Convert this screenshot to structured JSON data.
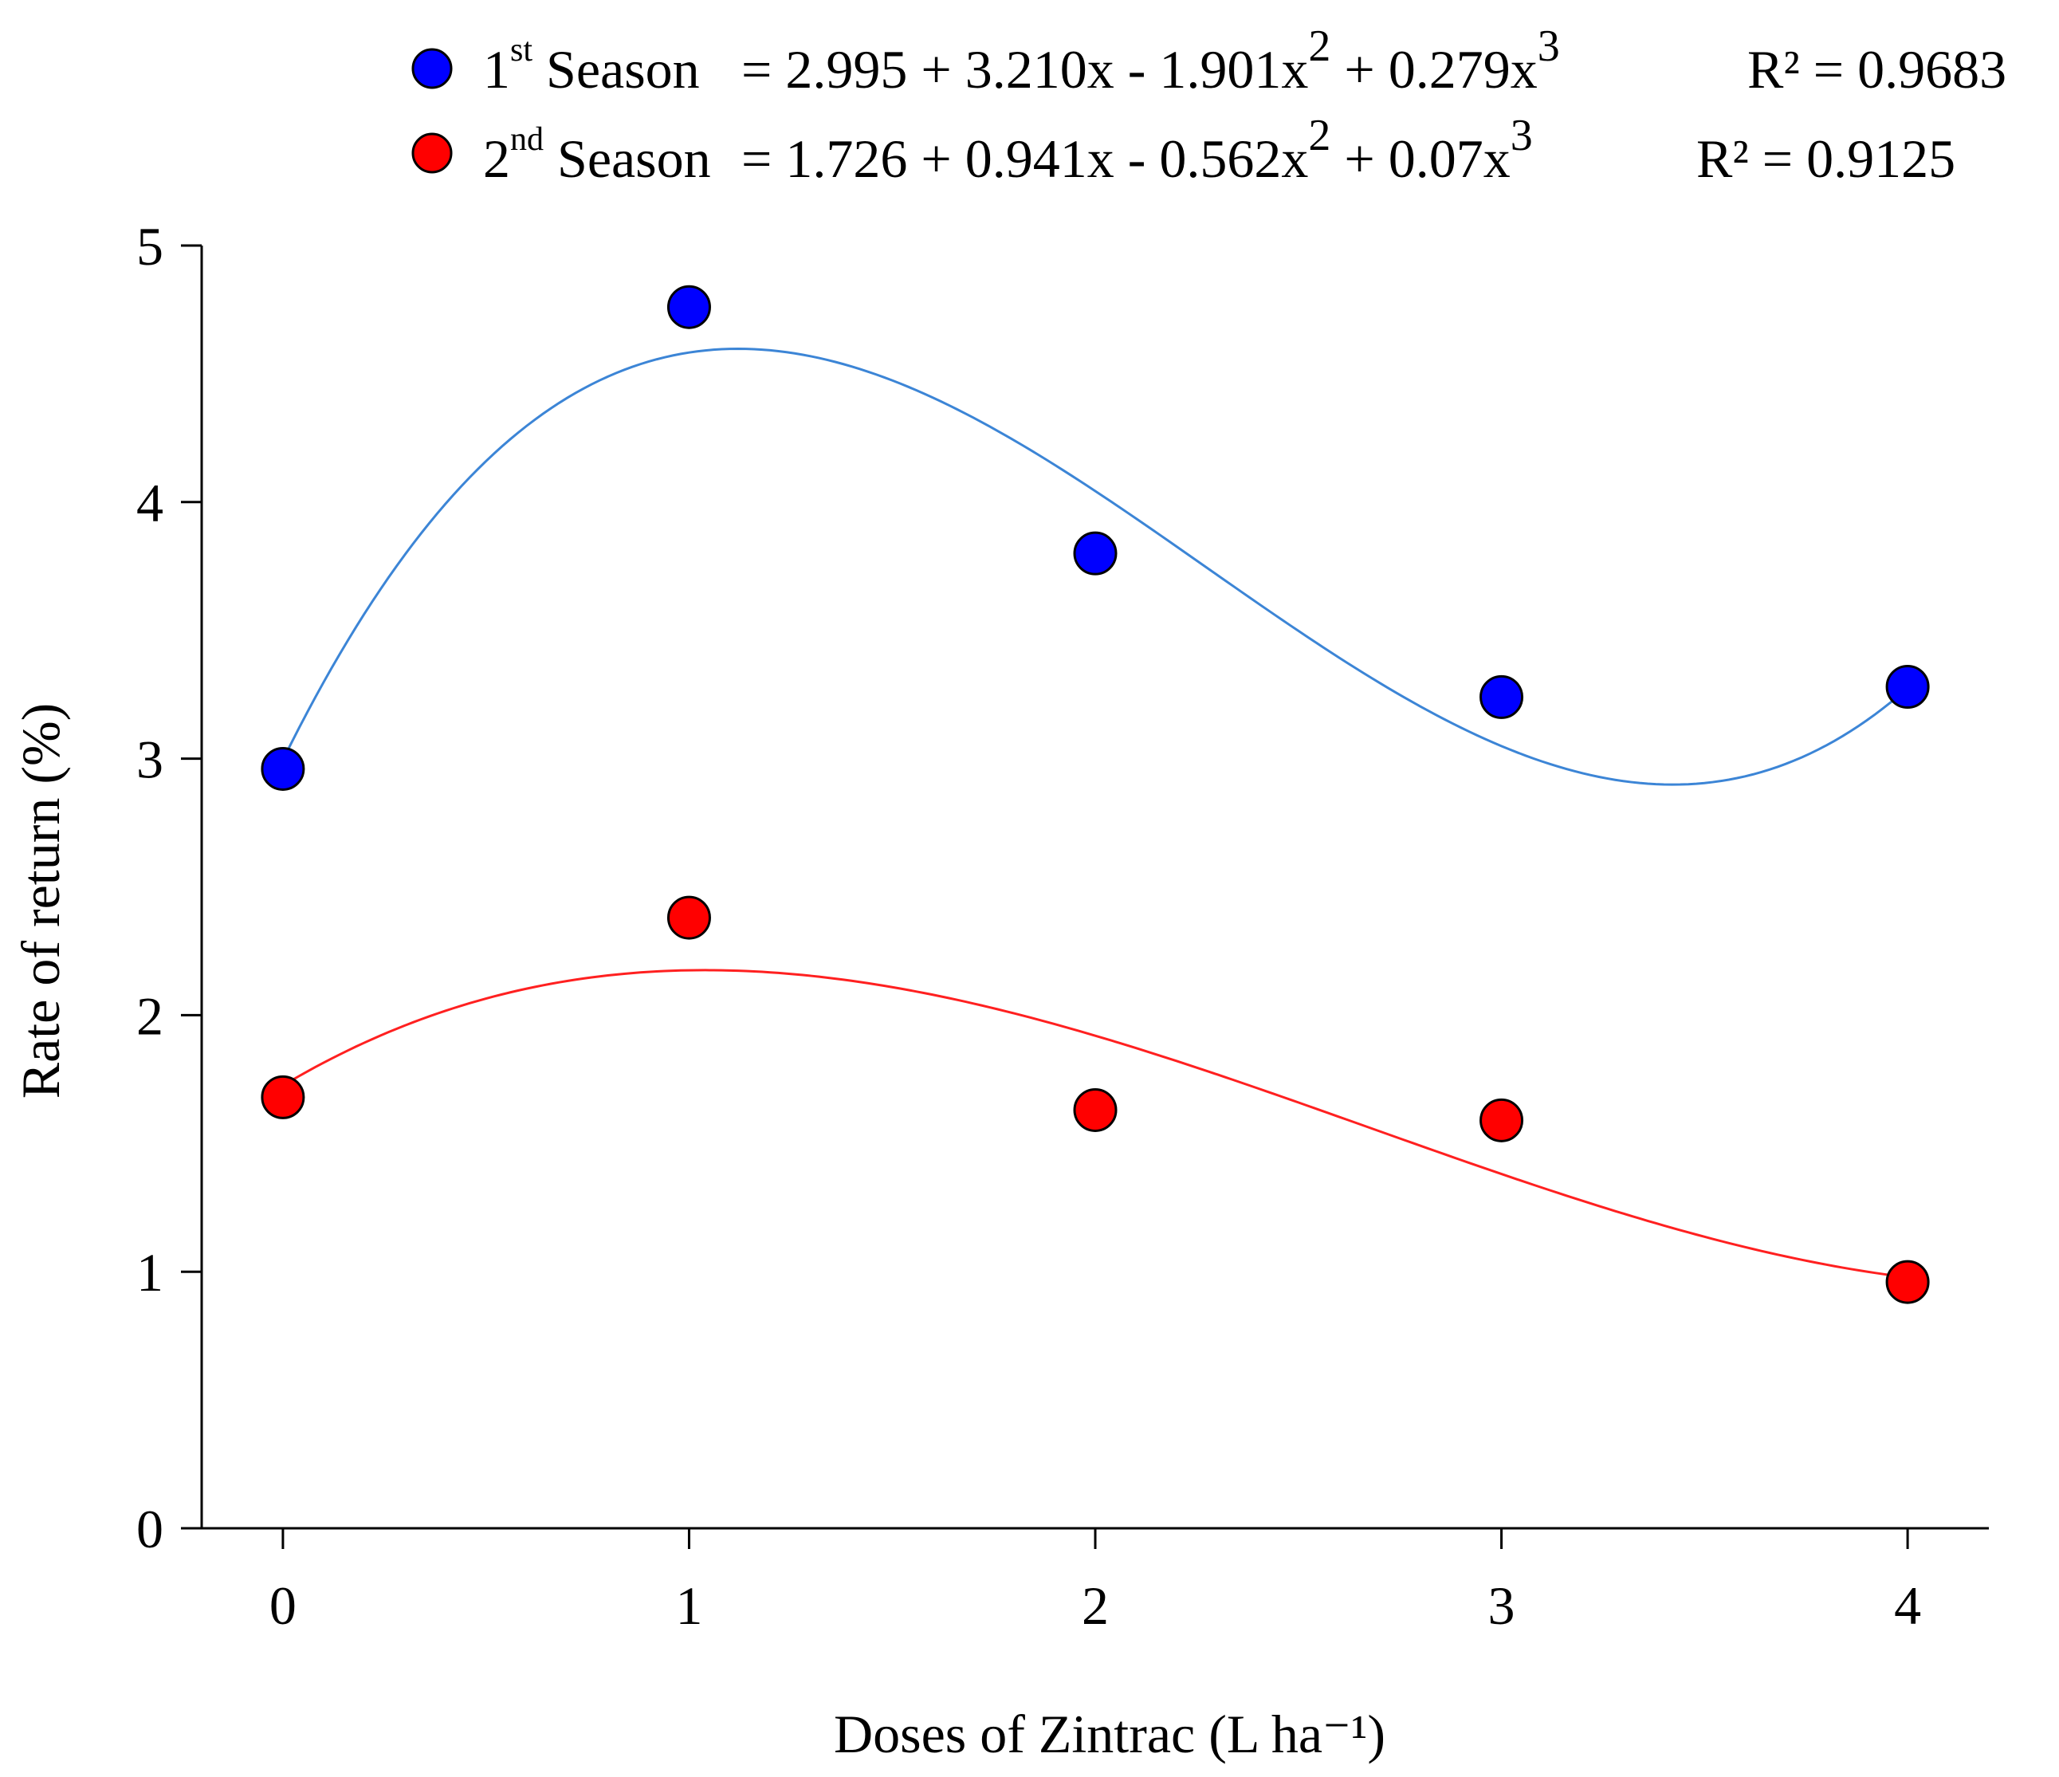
{
  "chart_data": {
    "type": "scatter",
    "title": "",
    "xlabel": "Doses of Zintrac (L ha⁻¹)",
    "ylabel": "Rate of return (%)",
    "xlim": [
      -0.2,
      4.2
    ],
    "ylim": [
      0,
      5
    ],
    "x_ticks": [
      "0",
      "1",
      "2",
      "3",
      "4"
    ],
    "y_ticks": [
      "0",
      "1",
      "2",
      "3",
      "4",
      "5"
    ],
    "grid": false,
    "legend_position": "top",
    "series": [
      {
        "name": "1st Season",
        "name_base": "1",
        "name_sup": "st",
        "name_rest": " Season",
        "color": "#0000ff",
        "curve_color": "#3c85d6",
        "x": [
          0,
          1,
          2,
          3,
          4
        ],
        "values": [
          2.96,
          4.76,
          3.8,
          3.24,
          3.28
        ],
        "fit": {
          "kind": "cubic",
          "coefficients": [
            2.995,
            3.21,
            -1.901,
            0.279
          ],
          "eq_prefix": "= 2.995 + 3.210x - 1.901x",
          "eq_sup1": "2",
          "eq_mid": " + 0.279x",
          "eq_sup2": "3",
          "r2_text": "R² =  0.9683"
        }
      },
      {
        "name": "2nd Season",
        "name_base": "2",
        "name_sup": "nd",
        "name_rest": " Season",
        "color": "#ff0000",
        "curve_color": "#ff2020",
        "x": [
          0,
          1,
          2,
          3,
          4
        ],
        "values": [
          1.68,
          2.38,
          1.63,
          1.59,
          0.96
        ],
        "fit": {
          "kind": "cubic",
          "coefficients": [
            1.726,
            0.941,
            -0.562,
            0.07
          ],
          "eq_prefix": "= 1.726 + 0.941x - 0.562x",
          "eq_sup1": "2",
          "eq_mid": " + 0.07x",
          "eq_sup2": "3",
          "r2_text": "R² = 0.9125"
        }
      }
    ]
  }
}
